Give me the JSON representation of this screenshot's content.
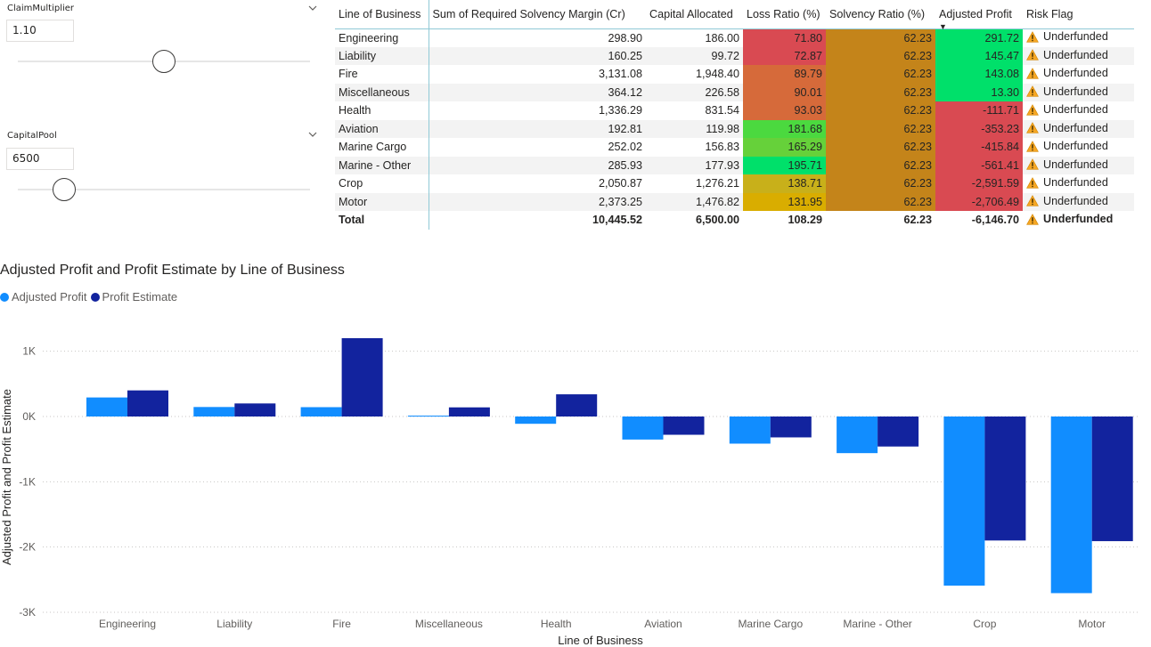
{
  "slicers": [
    {
      "title": "ClaimMultiplier",
      "value": "1.10",
      "position": 0.5
    },
    {
      "title": "CapitalPool",
      "value": "6500",
      "position": 0.16
    }
  ],
  "table": {
    "columns": [
      "Line of Business",
      "Sum of Required Solvency Margin (Cr)",
      "Capital Allocated",
      "Loss Ratio (%)",
      "Solvency Ratio (%)",
      "Adjusted Profit",
      "Risk Flag"
    ],
    "sorted_column": "Adjusted Profit",
    "rows": [
      {
        "lob": "Engineering",
        "margin": "298.90",
        "capital": "186.00",
        "loss": "71.80",
        "solvency": "62.23",
        "profit": "291.72",
        "flag": "Underfunded",
        "loss_color": "#d94a52",
        "profit_color": "#00e06a"
      },
      {
        "lob": "Liability",
        "margin": "160.25",
        "capital": "99.72",
        "loss": "72.87",
        "solvency": "62.23",
        "profit": "145.47",
        "flag": "Underfunded",
        "loss_color": "#d94a52",
        "profit_color": "#00e06a"
      },
      {
        "lob": "Fire",
        "margin": "3,131.08",
        "capital": "1,948.40",
        "loss": "89.79",
        "solvency": "62.23",
        "profit": "143.08",
        "flag": "Underfunded",
        "loss_color": "#d66a3a",
        "profit_color": "#00e06a"
      },
      {
        "lob": "Miscellaneous",
        "margin": "364.12",
        "capital": "226.58",
        "loss": "90.01",
        "solvency": "62.23",
        "profit": "13.30",
        "flag": "Underfunded",
        "loss_color": "#d66a3a",
        "profit_color": "#00e06a"
      },
      {
        "lob": "Health",
        "margin": "1,336.29",
        "capital": "831.54",
        "loss": "93.03",
        "solvency": "62.23",
        "profit": "-111.71",
        "flag": "Underfunded",
        "loss_color": "#d66a3a",
        "profit_color": "#d94a52"
      },
      {
        "lob": "Aviation",
        "margin": "192.81",
        "capital": "119.98",
        "loss": "181.68",
        "solvency": "62.23",
        "profit": "-353.23",
        "flag": "Underfunded",
        "loss_color": "#4bd93f",
        "profit_color": "#d94a52"
      },
      {
        "lob": "Marine Cargo",
        "margin": "252.02",
        "capital": "156.83",
        "loss": "165.29",
        "solvency": "62.23",
        "profit": "-415.84",
        "flag": "Underfunded",
        "loss_color": "#66d13a",
        "profit_color": "#d94a52"
      },
      {
        "lob": "Marine - Other",
        "margin": "285.93",
        "capital": "177.93",
        "loss": "195.71",
        "solvency": "62.23",
        "profit": "-561.41",
        "flag": "Underfunded",
        "loss_color": "#00e06a",
        "profit_color": "#d94a52"
      },
      {
        "lob": "Crop",
        "margin": "2,050.87",
        "capital": "1,276.21",
        "loss": "138.71",
        "solvency": "62.23",
        "profit": "-2,591.59",
        "flag": "Underfunded",
        "loss_color": "#c8b01a",
        "profit_color": "#d94a52"
      },
      {
        "lob": "Motor",
        "margin": "2,373.25",
        "capital": "1,476.82",
        "loss": "131.95",
        "solvency": "62.23",
        "profit": "-2,706.49",
        "flag": "Underfunded",
        "loss_color": "#d9ad00",
        "profit_color": "#d94a52"
      }
    ],
    "total": {
      "lob": "Total",
      "margin": "10,445.52",
      "capital": "6,500.00",
      "loss": "108.29",
      "solvency": "62.23",
      "profit": "-6,146.70",
      "flag": "Underfunded"
    },
    "solvency_color": "#c4841a",
    "warn_icon": "warning-triangle-icon"
  },
  "chart_data": {
    "type": "bar",
    "title": "Adjusted Profit and Profit Estimate by Line of Business",
    "xlabel": "Line of Business",
    "ylabel": "Adjusted Profit and Profit Estimate",
    "categories": [
      "Engineering",
      "Liability",
      "Fire",
      "Miscellaneous",
      "Health",
      "Aviation",
      "Marine Cargo",
      "Marine - Other",
      "Crop",
      "Motor"
    ],
    "series": [
      {
        "name": "Adjusted Profit",
        "color": "#118dff",
        "values": [
          291.72,
          145.47,
          143.08,
          13.3,
          -111.71,
          -353.23,
          -415.84,
          -561.41,
          -2591.59,
          -2706.49
        ]
      },
      {
        "name": "Profit Estimate",
        "color": "#12239e",
        "values": [
          400,
          200,
          1200,
          140,
          340,
          -280,
          -320,
          -460,
          -1900,
          -1910
        ]
      }
    ],
    "yticks": [
      -3000,
      -2000,
      -1000,
      0,
      1000
    ],
    "ytick_labels": [
      "-3K",
      "-2K",
      "-1K",
      "0K",
      "1K"
    ],
    "ylim": [
      -3000,
      1200
    ],
    "grid": true,
    "legend": "top-left"
  }
}
